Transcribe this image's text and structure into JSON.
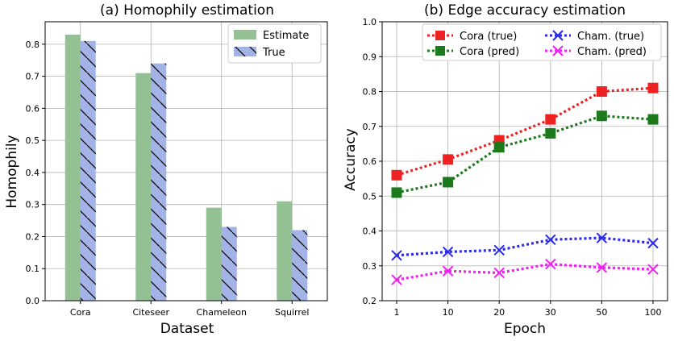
{
  "chart_data": [
    {
      "type": "bar",
      "title": "(a) Homophily estimation",
      "xlabel": "Dataset",
      "ylabel": "Homophily",
      "categories": [
        "Cora",
        "Citeseer",
        "Chameleon",
        "Squirrel"
      ],
      "series": [
        {
          "name": "Estimate",
          "color": "#93c193",
          "hatch": false,
          "values": [
            0.83,
            0.71,
            0.29,
            0.31
          ]
        },
        {
          "name": "True",
          "color": "#a3b3e8",
          "hatch": true,
          "values": [
            0.81,
            0.74,
            0.23,
            0.22
          ]
        }
      ],
      "ylim": [
        0,
        0.87
      ],
      "yticks": [
        "0.0",
        "0.1",
        "0.2",
        "0.3",
        "0.4",
        "0.5",
        "0.6",
        "0.7",
        "0.8"
      ],
      "grid": true,
      "legend_position": "top-right"
    },
    {
      "type": "line",
      "title": "(b) Edge accuracy estimation",
      "xlabel": "Epoch",
      "ylabel": "Accuracy",
      "x": [
        "1",
        "10",
        "20",
        "30",
        "50",
        "100"
      ],
      "series": [
        {
          "name": "Cora (true)",
          "color": "#ee2222",
          "marker": "square",
          "values": [
            0.56,
            0.605,
            0.66,
            0.72,
            0.8,
            0.81
          ]
        },
        {
          "name": "Cora (pred)",
          "color": "#1c7a1c",
          "marker": "square",
          "values": [
            0.51,
            0.54,
            0.64,
            0.68,
            0.73,
            0.72
          ]
        },
        {
          "name": "Cham. (true)",
          "color": "#2a2ae8",
          "marker": "x",
          "values": [
            0.33,
            0.34,
            0.345,
            0.375,
            0.38,
            0.365
          ]
        },
        {
          "name": "Cham. (pred)",
          "color": "#ee22ee",
          "marker": "x",
          "values": [
            0.26,
            0.285,
            0.28,
            0.305,
            0.295,
            0.29
          ]
        }
      ],
      "ylim": [
        0.2,
        1.0
      ],
      "yticks": [
        "0.2",
        "0.3",
        "0.4",
        "0.5",
        "0.6",
        "0.7",
        "0.8",
        "0.9",
        "1.0"
      ],
      "grid": true,
      "legend_position": "top"
    }
  ]
}
